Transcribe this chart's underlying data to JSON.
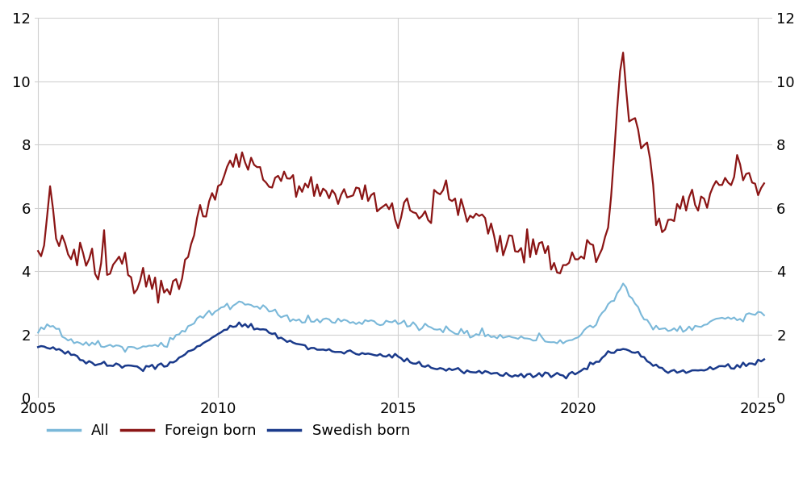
{
  "ylim": [
    0,
    12
  ],
  "yticks": [
    0,
    2,
    4,
    6,
    8,
    10,
    12
  ],
  "xlim": [
    2004.9,
    2025.4
  ],
  "xticks": [
    2005,
    2010,
    2015,
    2020,
    2025
  ],
  "colors": {
    "all": "#7ab8d9",
    "foreign": "#8b1515",
    "swedish": "#1a3a8b"
  },
  "legend": [
    "All",
    "Foreign born",
    "Swedish born"
  ],
  "background": "#ffffff",
  "grid_color": "#d0d0d0",
  "linewidth_foreign": 1.6,
  "linewidth_all": 1.5,
  "linewidth_swedish": 1.8
}
